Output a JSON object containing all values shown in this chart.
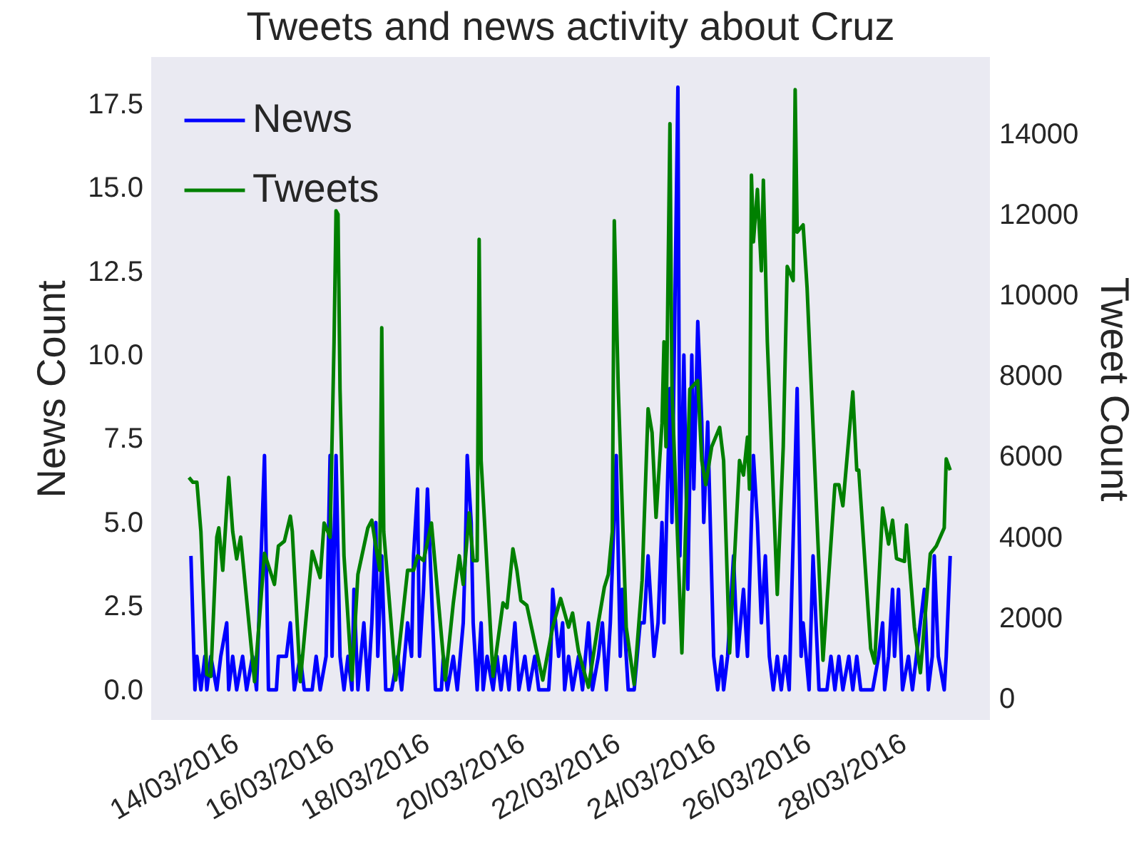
{
  "chart_data": {
    "type": "line",
    "title": "Tweets and news activity about Cruz",
    "ylabel": "News Count",
    "y2label": "Tweet Count",
    "xlim": [
      "2016-03-12T09:00",
      "2016-03-29T23:00"
    ],
    "xticks": [
      {
        "value": "2016-03-14",
        "label": "14/03/2016"
      },
      {
        "value": "2016-03-16",
        "label": "16/03/2016"
      },
      {
        "value": "2016-03-18",
        "label": "18/03/2016"
      },
      {
        "value": "2016-03-20",
        "label": "20/03/2016"
      },
      {
        "value": "2016-03-22",
        "label": "22/03/2016"
      },
      {
        "value": "2016-03-24",
        "label": "24/03/2016"
      },
      {
        "value": "2016-03-26",
        "label": "26/03/2016"
      },
      {
        "value": "2016-03-28",
        "label": "28/03/2016"
      }
    ],
    "ylim": [
      -0.9,
      18.9
    ],
    "yticks": [
      {
        "value": 0,
        "label": "0.0"
      },
      {
        "value": 2.5,
        "label": "2.5"
      },
      {
        "value": 5,
        "label": "5.0"
      },
      {
        "value": 7.5,
        "label": "7.5"
      },
      {
        "value": 10,
        "label": "10.0"
      },
      {
        "value": 12.5,
        "label": "12.5"
      },
      {
        "value": 15,
        "label": "15.0"
      },
      {
        "value": 17.5,
        "label": "17.5"
      }
    ],
    "y2lim": [
      -530,
      15900
    ],
    "y2ticks": [
      {
        "value": 0,
        "label": "0"
      },
      {
        "value": 2000,
        "label": "2000"
      },
      {
        "value": 4000,
        "label": "4000"
      },
      {
        "value": 6000,
        "label": "6000"
      },
      {
        "value": 8000,
        "label": "8000"
      },
      {
        "value": 10000,
        "label": "10000"
      },
      {
        "value": 12000,
        "label": "12000"
      },
      {
        "value": 14000,
        "label": "14000"
      }
    ],
    "grid": false,
    "legend": "top left",
    "marker": "none",
    "line_style": "solid",
    "series": [
      {
        "name": "News",
        "color": "#0000ff",
        "x": [
          "2016-03-13T05:00",
          "2016-03-13T07:00",
          "2016-03-13T08:00",
          "2016-03-13T10:00",
          "2016-03-13T12:00",
          "2016-03-13T13:00",
          "2016-03-13T15:00",
          "2016-03-13T18:00",
          "2016-03-13T20:00",
          "2016-03-13T23:00",
          "2016-03-14T00:00",
          "2016-03-14T02:00",
          "2016-03-14T04:00",
          "2016-03-14T07:00",
          "2016-03-14T09:00",
          "2016-03-14T12:00",
          "2016-03-14T14:00",
          "2016-03-14T18:00",
          "2016-03-14T20:00",
          "2016-03-15T00:00",
          "2016-03-15T01:00",
          "2016-03-15T05:00",
          "2016-03-15T07:00",
          "2016-03-15T09:00",
          "2016-03-15T12:00",
          "2016-03-15T14:00",
          "2016-03-15T18:00",
          "2016-03-15T20:00",
          "2016-03-15T22:00",
          "2016-03-16T01:00",
          "2016-03-16T03:00",
          "2016-03-16T04:00",
          "2016-03-16T06:00",
          "2016-03-16T08:00",
          "2016-03-16T10:00",
          "2016-03-16T12:00",
          "2016-03-16T14:00",
          "2016-03-16T15:00",
          "2016-03-16T17:00",
          "2016-03-16T20:00",
          "2016-03-16T22:00",
          "2016-03-17T00:00",
          "2016-03-17T02:00",
          "2016-03-17T03:00",
          "2016-03-17T05:00",
          "2016-03-17T07:00",
          "2016-03-17T10:00",
          "2016-03-17T13:00",
          "2016-03-17T15:00",
          "2016-03-17T18:00",
          "2016-03-17T20:00",
          "2016-03-17T21:00",
          "2016-03-17T23:00",
          "2016-03-18T00:00",
          "2016-03-18T02:00",
          "2016-03-18T04:00",
          "2016-03-18T06:00",
          "2016-03-18T08:00",
          "2016-03-18T11:00",
          "2016-03-18T12:00",
          "2016-03-18T14:00",
          "2016-03-18T17:00",
          "2016-03-18T19:00",
          "2016-03-18T22:00",
          "2016-03-18T23:00",
          "2016-03-19T00:00",
          "2016-03-19T02:00",
          "2016-03-19T03:00",
          "2016-03-19T05:00",
          "2016-03-19T07:00",
          "2016-03-19T08:00",
          "2016-03-19T10:00",
          "2016-03-19T13:00",
          "2016-03-19T15:00",
          "2016-03-19T17:00",
          "2016-03-19T19:00",
          "2016-03-19T21:00",
          "2016-03-20T00:00",
          "2016-03-20T02:00",
          "2016-03-20T05:00",
          "2016-03-20T07:00",
          "2016-03-20T10:00",
          "2016-03-20T12:00",
          "2016-03-20T17:00",
          "2016-03-20T18:00",
          "2016-03-20T19:00",
          "2016-03-20T22:00",
          "2016-03-21T00:00",
          "2016-03-21T01:00",
          "2016-03-21T03:00",
          "2016-03-21T05:00",
          "2016-03-21T08:00",
          "2016-03-21T10:00",
          "2016-03-21T13:00",
          "2016-03-21T15:00",
          "2016-03-21T18:00",
          "2016-03-21T20:00",
          "2016-03-21T22:00",
          "2016-03-22T00:00",
          "2016-03-22T03:00",
          "2016-03-22T05:00",
          "2016-03-22T06:00",
          "2016-03-22T09:00",
          "2016-03-22T12:00",
          "2016-03-22T15:00",
          "2016-03-22T17:00",
          "2016-03-22T19:00",
          "2016-03-22T22:00",
          "2016-03-23T00:00",
          "2016-03-23T02:00",
          "2016-03-23T03:00",
          "2016-03-23T06:00",
          "2016-03-23T07:00",
          "2016-03-23T10:00",
          "2016-03-23T11:00",
          "2016-03-23T13:00",
          "2016-03-23T15:00",
          "2016-03-23T17:00",
          "2016-03-23T18:00",
          "2016-03-23T20:00",
          "2016-03-23T22:00",
          "2016-03-23T23:00",
          "2016-03-24T01:00",
          "2016-03-24T04:00",
          "2016-03-24T06:00",
          "2016-03-24T08:00",
          "2016-03-24T09:00",
          "2016-03-24T11:00",
          "2016-03-24T14:00",
          "2016-03-24T16:00",
          "2016-03-24T19:00",
          "2016-03-24T21:00",
          "2016-03-24T23:00",
          "2016-03-25T00:00",
          "2016-03-25T02:00",
          "2016-03-25T04:00",
          "2016-03-25T06:00",
          "2016-03-25T08:00",
          "2016-03-25T10:00",
          "2016-03-25T12:00",
          "2016-03-25T14:00",
          "2016-03-25T16:00",
          "2016-03-25T18:00",
          "2016-03-25T22:00",
          "2016-03-26T00:00",
          "2016-03-26T01:00",
          "2016-03-26T04:00",
          "2016-03-26T06:00",
          "2016-03-26T09:00",
          "2016-03-26T13:00",
          "2016-03-26T15:00",
          "2016-03-26T17:00",
          "2016-03-26T19:00",
          "2016-03-26T21:00",
          "2016-03-27T00:00",
          "2016-03-27T02:00",
          "2016-03-27T04:00",
          "2016-03-27T06:00",
          "2016-03-27T12:00",
          "2016-03-27T15:00",
          "2016-03-27T17:00",
          "2016-03-27T18:00",
          "2016-03-27T20:00",
          "2016-03-27T22:00",
          "2016-03-27T23:00",
          "2016-03-28T01:00",
          "2016-03-28T03:00",
          "2016-03-28T06:00",
          "2016-03-28T08:00",
          "2016-03-28T10:00",
          "2016-03-28T12:00",
          "2016-03-28T14:00",
          "2016-03-28T16:00",
          "2016-03-28T18:00",
          "2016-03-28T19:00",
          "2016-03-28T21:00",
          "2016-03-29T00:00",
          "2016-03-29T01:00",
          "2016-03-29T03:00"
        ],
        "values": [
          4,
          0,
          1,
          0,
          1,
          0,
          1,
          0,
          1,
          2,
          0,
          1,
          0,
          1,
          0,
          1,
          0,
          7,
          0,
          0,
          1,
          1,
          2,
          0,
          1,
          0,
          0,
          1,
          0,
          1,
          7,
          1,
          7,
          1,
          0,
          1,
          0,
          3,
          0,
          2,
          0,
          2,
          5,
          1,
          4,
          0,
          0,
          1,
          0,
          2,
          1,
          4,
          6,
          1,
          3,
          6,
          3,
          0,
          0,
          1,
          0,
          1,
          0,
          2,
          4,
          7,
          5,
          2,
          0,
          2,
          0,
          1,
          0,
          1,
          0,
          1,
          0,
          2,
          0,
          1,
          0,
          1,
          0,
          0,
          1,
          3,
          1,
          2,
          0,
          1,
          0,
          1,
          0,
          2,
          0,
          1,
          2,
          0,
          2,
          7,
          1,
          3,
          0,
          0,
          2,
          2,
          4,
          1,
          2,
          5,
          2,
          9,
          5,
          18,
          4,
          10,
          3,
          10,
          6,
          11,
          8,
          5,
          8,
          1,
          0,
          1,
          0,
          1,
          4,
          1,
          3,
          1,
          5,
          7,
          5,
          2,
          4,
          1,
          0,
          1,
          0,
          1,
          0,
          9,
          1,
          2,
          0,
          4,
          0,
          0,
          1,
          0,
          1,
          0,
          1,
          0,
          1,
          0,
          0,
          1,
          2,
          0,
          1,
          3,
          1,
          3,
          0,
          1,
          0,
          1,
          2,
          3,
          0,
          1,
          4,
          1,
          0,
          1,
          4
        ]
      },
      {
        "name": "Tweets",
        "color": "#008000",
        "axis": "y2",
        "x": [
          "2016-03-13T04:00",
          "2016-03-13T06:00",
          "2016-03-13T08:00",
          "2016-03-13T10:00",
          "2016-03-13T13:00",
          "2016-03-13T15:00",
          "2016-03-13T18:00",
          "2016-03-13T19:00",
          "2016-03-13T21:00",
          "2016-03-14T00:00",
          "2016-03-14T02:00",
          "2016-03-14T04:00",
          "2016-03-14T06:00",
          "2016-03-14T13:00",
          "2016-03-14T18:00",
          "2016-03-14T23:00",
          "2016-03-15T01:00",
          "2016-03-15T04:00",
          "2016-03-15T07:00",
          "2016-03-15T08:00",
          "2016-03-15T12:00",
          "2016-03-15T18:00",
          "2016-03-15T22:00",
          "2016-03-16T00:00",
          "2016-03-16T03:00",
          "2016-03-16T05:00",
          "2016-03-16T06:00",
          "2016-03-16T07:00",
          "2016-03-16T08:00",
          "2016-03-16T10:00",
          "2016-03-16T14:00",
          "2016-03-16T17:00",
          "2016-03-16T19:00",
          "2016-03-16T22:00",
          "2016-03-17T00:00",
          "2016-03-17T02:00",
          "2016-03-17T04:00",
          "2016-03-17T05:00",
          "2016-03-17T06:00",
          "2016-03-17T12:00",
          "2016-03-17T18:00",
          "2016-03-17T21:00",
          "2016-03-17T23:00",
          "2016-03-18T02:00",
          "2016-03-18T06:00",
          "2016-03-18T13:00",
          "2016-03-18T17:00",
          "2016-03-18T20:00",
          "2016-03-18T22:00",
          "2016-03-19T01:00",
          "2016-03-19T03:00",
          "2016-03-19T05:00",
          "2016-03-19T06:00",
          "2016-03-19T07:00",
          "2016-03-19T13:00",
          "2016-03-19T18:00",
          "2016-03-19T20:00",
          "2016-03-19T23:00",
          "2016-03-20T01:00",
          "2016-03-20T03:00",
          "2016-03-20T06:00",
          "2016-03-20T14:00",
          "2016-03-20T19:00",
          "2016-03-20T23:00",
          "2016-03-21T03:00",
          "2016-03-21T05:00",
          "2016-03-21T08:00",
          "2016-03-21T13:00",
          "2016-03-21T18:00",
          "2016-03-21T21:00",
          "2016-03-21T23:00",
          "2016-03-22T01:00",
          "2016-03-22T02:00",
          "2016-03-22T04:00",
          "2016-03-22T08:00",
          "2016-03-22T12:00",
          "2016-03-22T16:00",
          "2016-03-22T19:00",
          "2016-03-22T21:00",
          "2016-03-22T23:00",
          "2016-03-23T02:00",
          "2016-03-23T03:00",
          "2016-03-23T04:00",
          "2016-03-23T06:00",
          "2016-03-23T07:00",
          "2016-03-23T12:00",
          "2016-03-23T16:00",
          "2016-03-23T20:00",
          "2016-03-23T22:00",
          "2016-03-24T00:00",
          "2016-03-24T03:00",
          "2016-03-24T07:00",
          "2016-03-24T09:00",
          "2016-03-24T12:00",
          "2016-03-24T17:00",
          "2016-03-24T19:00",
          "2016-03-24T21:00",
          "2016-03-24T22:00",
          "2016-03-24T23:00",
          "2016-03-25T00:00",
          "2016-03-25T02:00",
          "2016-03-25T04:00",
          "2016-03-25T05:00",
          "2016-03-25T07:00",
          "2016-03-25T12:00",
          "2016-03-25T15:00",
          "2016-03-25T17:00",
          "2016-03-25T20:00",
          "2016-03-25T21:00",
          "2016-03-25T22:00",
          "2016-03-26T01:00",
          "2016-03-26T03:00",
          "2016-03-26T11:00",
          "2016-03-26T17:00",
          "2016-03-26T19:00",
          "2016-03-26T21:00",
          "2016-03-27T02:00",
          "2016-03-27T04:00",
          "2016-03-27T05:00",
          "2016-03-27T11:00",
          "2016-03-27T13:00",
          "2016-03-27T17:00",
          "2016-03-27T20:00",
          "2016-03-27T22:00",
          "2016-03-28T00:00",
          "2016-03-28T04:00",
          "2016-03-28T05:00",
          "2016-03-28T09:00",
          "2016-03-28T12:00",
          "2016-03-28T17:00",
          "2016-03-28T20:00",
          "2016-03-29T00:00",
          "2016-03-29T01:00",
          "2016-03-29T03:00"
        ],
        "values": [
          5480,
          5360,
          5360,
          4140,
          600,
          550,
          4000,
          4230,
          3180,
          5480,
          4140,
          3460,
          4000,
          420,
          3600,
          2830,
          3780,
          3900,
          4520,
          4140,
          420,
          3650,
          3000,
          4350,
          4000,
          8840,
          12090,
          12000,
          7670,
          3540,
          460,
          3080,
          3540,
          4230,
          4420,
          3780,
          3180,
          9190,
          4140,
          460,
          3180,
          3180,
          3540,
          3420,
          4350,
          460,
          2370,
          3540,
          2830,
          4600,
          3420,
          3420,
          11380,
          5900,
          550,
          2370,
          2250,
          3710,
          3180,
          2430,
          2310,
          460,
          1770,
          2480,
          1770,
          2120,
          1170,
          280,
          1890,
          2760,
          3080,
          4140,
          11840,
          7670,
          1770,
          350,
          2930,
          7180,
          6590,
          4490,
          6830,
          8840,
          6240,
          14250,
          7670,
          1130,
          7670,
          7880,
          5900,
          5300,
          6240,
          6720,
          5900,
          1130,
          5900,
          5540,
          6480,
          5190,
          12970,
          11320,
          12620,
          10600,
          12850,
          8840,
          2580,
          6240,
          10710,
          10360,
          15090,
          11560,
          11740,
          10180,
          950,
          5300,
          5300,
          4780,
          7600,
          5660,
          5660,
          1240,
          880,
          4720,
          3830,
          4420,
          3470,
          3400,
          4300,
          1770,
          640,
          3590,
          3780,
          4230,
          5940,
          5660
        ]
      }
    ]
  }
}
